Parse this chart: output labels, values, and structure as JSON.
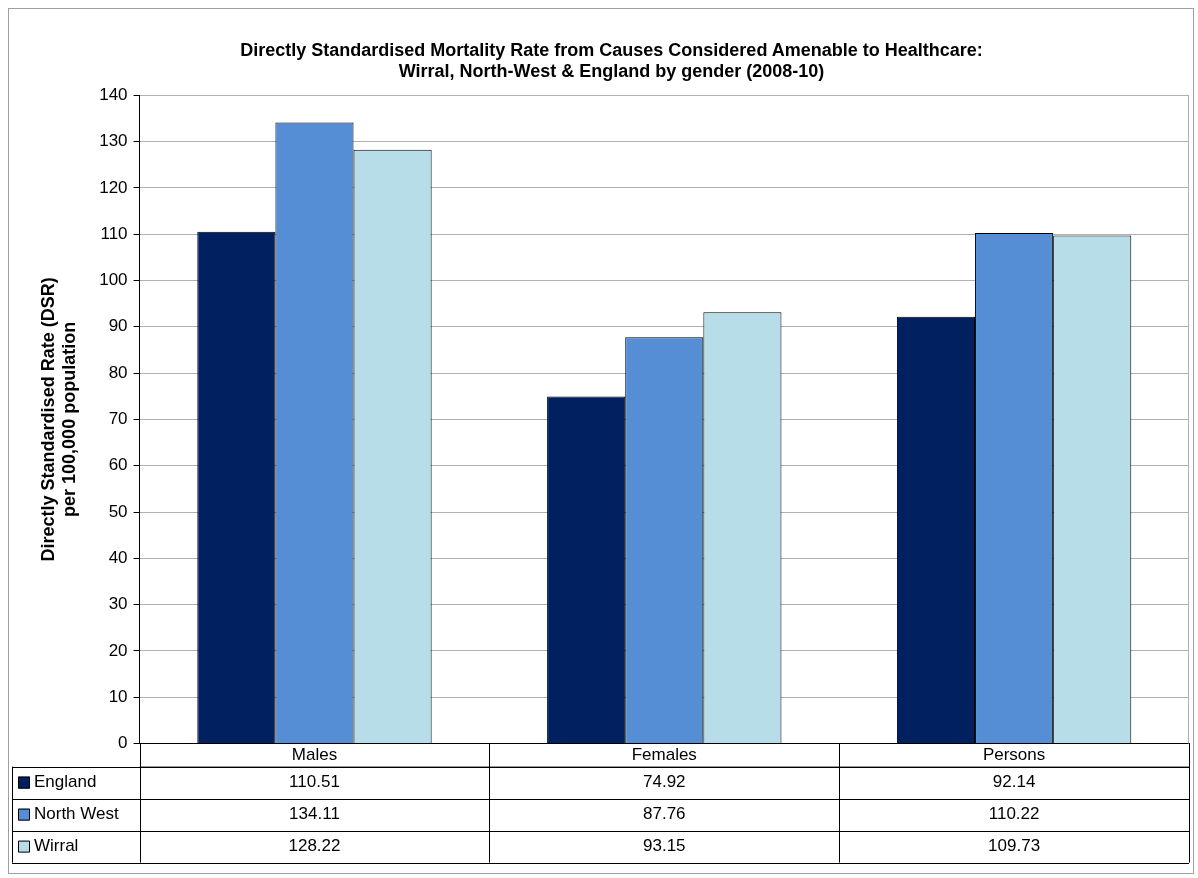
{
  "chart_data": {
    "type": "bar",
    "title": [
      "Directly Standardised Mortality Rate from Causes Considered Amenable to Healthcare:",
      "Wirral, North-West & England by gender (2008-10)"
    ],
    "ylabel": [
      "Directly Standardised Rate (DSR)",
      "per 100,000 population"
    ],
    "categories": [
      "Males",
      "Females",
      "Persons"
    ],
    "series": [
      {
        "name": "England",
        "color": "#002060",
        "values": [
          110.51,
          74.92,
          92.14
        ]
      },
      {
        "name": "North West",
        "color": "#558ed5",
        "values": [
          134.11,
          87.76,
          110.22
        ]
      },
      {
        "name": "Wirral",
        "color": "#b7dee8",
        "values": [
          128.22,
          93.15,
          109.73
        ]
      }
    ],
    "ylim": [
      0,
      140
    ],
    "yticks": [
      0,
      10,
      20,
      30,
      40,
      50,
      60,
      70,
      80,
      90,
      100,
      110,
      120,
      130,
      140
    ],
    "grid": "y",
    "legend": "bottom",
    "data_labels": true
  }
}
